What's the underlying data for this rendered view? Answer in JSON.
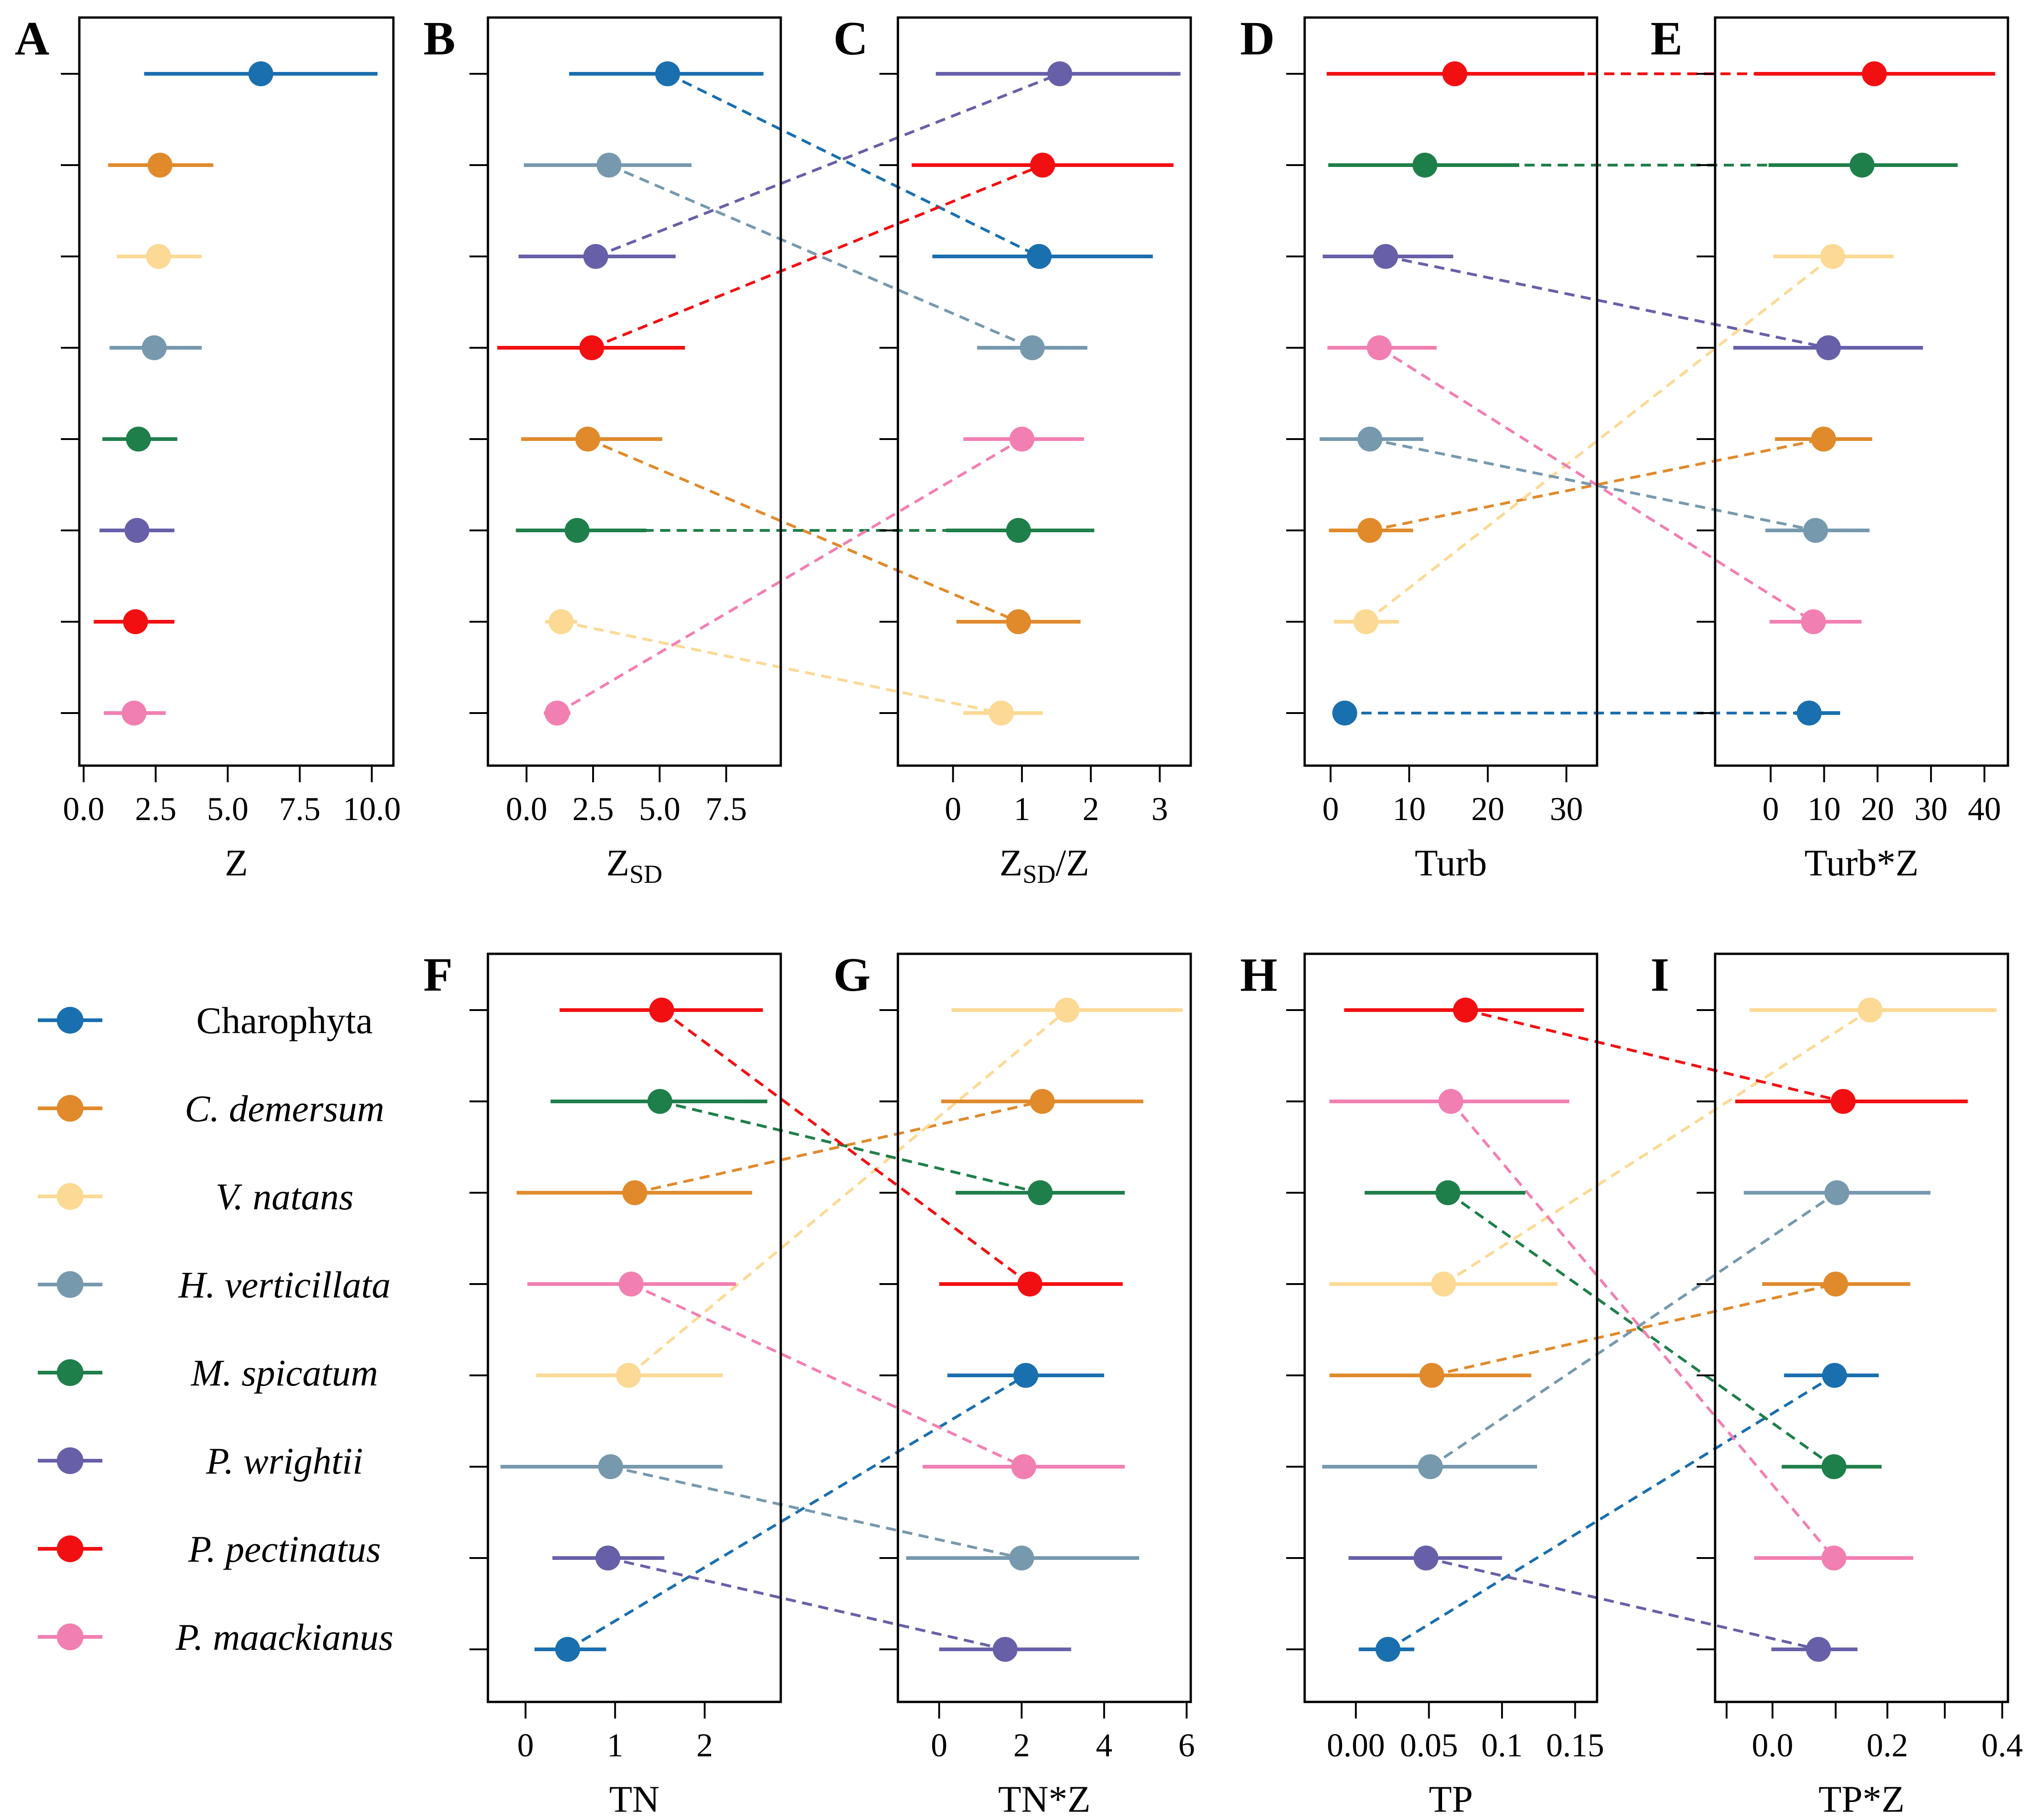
{
  "species": [
    {
      "name": "Charophyta",
      "italic": false,
      "color": "#1a6faf"
    },
    {
      "name": "C. demersum",
      "italic": true,
      "color": "#e08a2c"
    },
    {
      "name": "V. natans",
      "italic": true,
      "color": "#fcd994"
    },
    {
      "name": "H. verticillata",
      "italic": true,
      "color": "#7799ae"
    },
    {
      "name": "M. spicatum",
      "italic": true,
      "color": "#1f7f4a"
    },
    {
      "name": "P. wrightii",
      "italic": true,
      "color": "#6760a8"
    },
    {
      "name": "P. pectinatus",
      "italic": true,
      "color": "#f20f12"
    },
    {
      "name": "P. maackianus",
      "italic": true,
      "color": "#f27fb2"
    }
  ],
  "chart_data": [
    {
      "id": "A",
      "letter": "A",
      "type": "forest",
      "xlabel": "Z",
      "xlabel_sub": "",
      "xlabel_suffix": "",
      "xlim": [
        -0.15,
        10.75
      ],
      "ticks": [
        0,
        2.5,
        5,
        7.5,
        10
      ],
      "tick_labels": [
        "0.0",
        "2.5",
        "5.0",
        "7.5",
        "10.0"
      ],
      "points": [
        {
          "s": 0,
          "mean": 6.15,
          "lo": 2.1,
          "hi": 10.2
        },
        {
          "s": 1,
          "mean": 2.65,
          "lo": 0.85,
          "hi": 4.5
        },
        {
          "s": 2,
          "mean": 2.6,
          "lo": 1.15,
          "hi": 4.1
        },
        {
          "s": 3,
          "mean": 2.45,
          "lo": 0.9,
          "hi": 4.1
        },
        {
          "s": 4,
          "mean": 1.9,
          "lo": 0.65,
          "hi": 3.25
        },
        {
          "s": 5,
          "mean": 1.85,
          "lo": 0.55,
          "hi": 3.15
        },
        {
          "s": 6,
          "mean": 1.8,
          "lo": 0.35,
          "hi": 3.15
        },
        {
          "s": 7,
          "mean": 1.75,
          "lo": 0.7,
          "hi": 2.85
        }
      ]
    },
    {
      "id": "B",
      "letter": "B",
      "type": "forest",
      "xlabel": "Z",
      "xlabel_sub": "SD",
      "xlabel_suffix": "",
      "xlim": [
        -1.45,
        9.55
      ],
      "ticks": [
        0,
        2.5,
        5,
        7.5
      ],
      "tick_labels": [
        "0.0",
        "2.5",
        "5.0",
        "7.5"
      ],
      "points": [
        {
          "s": 0,
          "mean": 5.3,
          "lo": 1.6,
          "hi": 8.9
        },
        {
          "s": 3,
          "mean": 3.1,
          "lo": -0.1,
          "hi": 6.2
        },
        {
          "s": 5,
          "mean": 2.6,
          "lo": -0.3,
          "hi": 5.6
        },
        {
          "s": 6,
          "mean": 2.45,
          "lo": -1.1,
          "hi": 5.95
        },
        {
          "s": 1,
          "mean": 2.3,
          "lo": -0.2,
          "hi": 5.1
        },
        {
          "s": 4,
          "mean": 1.9,
          "lo": -0.4,
          "hi": 4.5
        },
        {
          "s": 2,
          "mean": 1.3,
          "lo": 0.7,
          "hi": 1.9
        },
        {
          "s": 7,
          "mean": 1.15,
          "lo": 0.65,
          "hi": 1.65
        }
      ]
    },
    {
      "id": "C",
      "letter": "C",
      "type": "forest",
      "xlabel": "Z",
      "xlabel_sub": "SD",
      "xlabel_suffix": "/Z",
      "xlim": [
        -0.8,
        3.45
      ],
      "ticks": [
        0,
        1,
        2,
        3
      ],
      "tick_labels": [
        "0",
        "1",
        "2",
        "3"
      ],
      "points": [
        {
          "s": 5,
          "mean": 1.55,
          "lo": -0.25,
          "hi": 3.3
        },
        {
          "s": 6,
          "mean": 1.3,
          "lo": -0.6,
          "hi": 3.2
        },
        {
          "s": 0,
          "mean": 1.25,
          "lo": -0.3,
          "hi": 2.9
        },
        {
          "s": 3,
          "mean": 1.15,
          "lo": 0.35,
          "hi": 1.95
        },
        {
          "s": 7,
          "mean": 1.0,
          "lo": 0.15,
          "hi": 1.9
        },
        {
          "s": 4,
          "mean": 0.95,
          "lo": -0.1,
          "hi": 2.05
        },
        {
          "s": 1,
          "mean": 0.95,
          "lo": 0.05,
          "hi": 1.85
        },
        {
          "s": 2,
          "mean": 0.7,
          "lo": 0.15,
          "hi": 1.3
        }
      ]
    },
    {
      "id": "D",
      "letter": "D",
      "type": "forest",
      "xlabel": "Turb",
      "xlabel_sub": "",
      "xlabel_suffix": "",
      "xlim": [
        -3.3,
        33.9
      ],
      "ticks": [
        0,
        10,
        20,
        30
      ],
      "tick_labels": [
        "0",
        "10",
        "20",
        "30"
      ],
      "points": [
        {
          "s": 6,
          "mean": 15.8,
          "lo": -0.5,
          "hi": 32.3
        },
        {
          "s": 4,
          "mean": 12.0,
          "lo": -0.3,
          "hi": 24.0
        },
        {
          "s": 5,
          "mean": 7.0,
          "lo": -1.0,
          "hi": 15.6
        },
        {
          "s": 7,
          "mean": 6.2,
          "lo": -0.4,
          "hi": 13.5
        },
        {
          "s": 3,
          "mean": 5.0,
          "lo": -1.4,
          "hi": 11.8
        },
        {
          "s": 1,
          "mean": 5.0,
          "lo": -0.2,
          "hi": 10.5
        },
        {
          "s": 2,
          "mean": 4.5,
          "lo": 0.4,
          "hi": 8.7
        },
        {
          "s": 0,
          "mean": 1.8,
          "lo": 0.8,
          "hi": 2.8
        }
      ]
    },
    {
      "id": "E",
      "letter": "E",
      "type": "forest",
      "xlabel": "Turb*Z",
      "xlabel_sub": "",
      "xlabel_suffix": "",
      "xlim": [
        -10.4,
        44.4
      ],
      "ticks": [
        0,
        10,
        20,
        30,
        40
      ],
      "tick_labels": [
        "0",
        "10",
        "20",
        "30",
        "40"
      ],
      "points": [
        {
          "s": 6,
          "mean": 19.4,
          "lo": -3.0,
          "hi": 42.0
        },
        {
          "s": 4,
          "mean": 17.1,
          "lo": -0.4,
          "hi": 35.0
        },
        {
          "s": 2,
          "mean": 11.6,
          "lo": 0.5,
          "hi": 23.0
        },
        {
          "s": 5,
          "mean": 10.8,
          "lo": -7.0,
          "hi": 28.5
        },
        {
          "s": 1,
          "mean": 9.9,
          "lo": 0.8,
          "hi": 19.0
        },
        {
          "s": 3,
          "mean": 8.4,
          "lo": -1.0,
          "hi": 18.5
        },
        {
          "s": 7,
          "mean": 8.0,
          "lo": -0.2,
          "hi": 17.0
        },
        {
          "s": 0,
          "mean": 7.2,
          "lo": 4.5,
          "hi": 13.0
        }
      ]
    },
    {
      "id": "F",
      "letter": "F",
      "type": "forest",
      "xlabel": "TN",
      "xlabel_sub": "",
      "xlabel_suffix": "",
      "xlim": [
        -0.42,
        2.85
      ],
      "ticks": [
        0,
        1,
        2
      ],
      "tick_labels": [
        "0",
        "1",
        "2"
      ],
      "points": [
        {
          "s": 6,
          "mean": 1.52,
          "lo": 0.38,
          "hi": 2.65
        },
        {
          "s": 4,
          "mean": 1.5,
          "lo": 0.28,
          "hi": 2.7
        },
        {
          "s": 1,
          "mean": 1.22,
          "lo": -0.1,
          "hi": 2.53
        },
        {
          "s": 7,
          "mean": 1.18,
          "lo": 0.02,
          "hi": 2.35
        },
        {
          "s": 2,
          "mean": 1.15,
          "lo": 0.12,
          "hi": 2.2
        },
        {
          "s": 3,
          "mean": 0.95,
          "lo": -0.28,
          "hi": 2.2
        },
        {
          "s": 5,
          "mean": 0.92,
          "lo": 0.3,
          "hi": 1.55
        },
        {
          "s": 0,
          "mean": 0.47,
          "lo": 0.1,
          "hi": 0.9
        }
      ]
    },
    {
      "id": "G",
      "letter": "G",
      "type": "forest",
      "xlabel": "TN*Z",
      "xlabel_sub": "",
      "xlabel_suffix": "",
      "xlim": [
        -1.0,
        6.1
      ],
      "ticks": [
        0,
        2,
        4,
        6
      ],
      "tick_labels": [
        "0",
        "2",
        "4",
        "6"
      ],
      "points": [
        {
          "s": 2,
          "mean": 3.1,
          "lo": 0.3,
          "hi": 5.9
        },
        {
          "s": 1,
          "mean": 2.5,
          "lo": 0.05,
          "hi": 4.95
        },
        {
          "s": 4,
          "mean": 2.45,
          "lo": 0.4,
          "hi": 4.5
        },
        {
          "s": 6,
          "mean": 2.2,
          "lo": 0.0,
          "hi": 4.45
        },
        {
          "s": 0,
          "mean": 2.1,
          "lo": 0.2,
          "hi": 4.0
        },
        {
          "s": 7,
          "mean": 2.05,
          "lo": -0.4,
          "hi": 4.5
        },
        {
          "s": 3,
          "mean": 2.0,
          "lo": -0.8,
          "hi": 4.85
        },
        {
          "s": 5,
          "mean": 1.6,
          "lo": 0.0,
          "hi": 3.2
        }
      ]
    },
    {
      "id": "H",
      "letter": "H",
      "type": "forest",
      "xlabel": "TP",
      "xlabel_sub": "",
      "xlabel_suffix": "",
      "xlim": [
        -0.035,
        0.165
      ],
      "ticks": [
        0,
        0.05,
        0.1,
        0.15
      ],
      "tick_labels": [
        "0.00",
        "0.05",
        "0.1",
        "0.15"
      ],
      "points": [
        {
          "s": 6,
          "mean": 0.075,
          "lo": -0.008,
          "hi": 0.156
        },
        {
          "s": 7,
          "mean": 0.065,
          "lo": -0.018,
          "hi": 0.146
        },
        {
          "s": 4,
          "mean": 0.063,
          "lo": 0.006,
          "hi": 0.116
        },
        {
          "s": 2,
          "mean": 0.06,
          "lo": -0.018,
          "hi": 0.138
        },
        {
          "s": 1,
          "mean": 0.052,
          "lo": -0.018,
          "hi": 0.12
        },
        {
          "s": 3,
          "mean": 0.051,
          "lo": -0.023,
          "hi": 0.124
        },
        {
          "s": 5,
          "mean": 0.048,
          "lo": -0.005,
          "hi": 0.1
        },
        {
          "s": 0,
          "mean": 0.022,
          "lo": 0.002,
          "hi": 0.04
        }
      ]
    },
    {
      "id": "I",
      "letter": "I",
      "type": "forest",
      "xlabel": "TP*Z",
      "xlabel_sub": "",
      "xlabel_suffix": "",
      "xlim": [
        -0.1,
        0.41
      ],
      "ticks": [
        0,
        0.2,
        0.4
      ],
      "tick_labels": [
        "0.0",
        "0.2",
        "0.4"
      ],
      "minor_ticks": [
        -0.08,
        0.11,
        0.3
      ],
      "points": [
        {
          "s": 2,
          "mean": 0.17,
          "lo": -0.04,
          "hi": 0.39
        },
        {
          "s": 6,
          "mean": 0.123,
          "lo": -0.065,
          "hi": 0.34
        },
        {
          "s": 3,
          "mean": 0.112,
          "lo": -0.05,
          "hi": 0.275
        },
        {
          "s": 1,
          "mean": 0.11,
          "lo": -0.018,
          "hi": 0.24
        },
        {
          "s": 0,
          "mean": 0.108,
          "lo": 0.02,
          "hi": 0.185
        },
        {
          "s": 4,
          "mean": 0.107,
          "lo": 0.016,
          "hi": 0.19
        },
        {
          "s": 7,
          "mean": 0.107,
          "lo": -0.032,
          "hi": 0.245
        },
        {
          "s": 5,
          "mean": 0.08,
          "lo": -0.002,
          "hi": 0.148
        }
      ]
    }
  ],
  "connections": [
    [
      "B",
      "C"
    ],
    [
      "D",
      "E"
    ],
    [
      "F",
      "G"
    ],
    [
      "H",
      "I"
    ]
  ]
}
